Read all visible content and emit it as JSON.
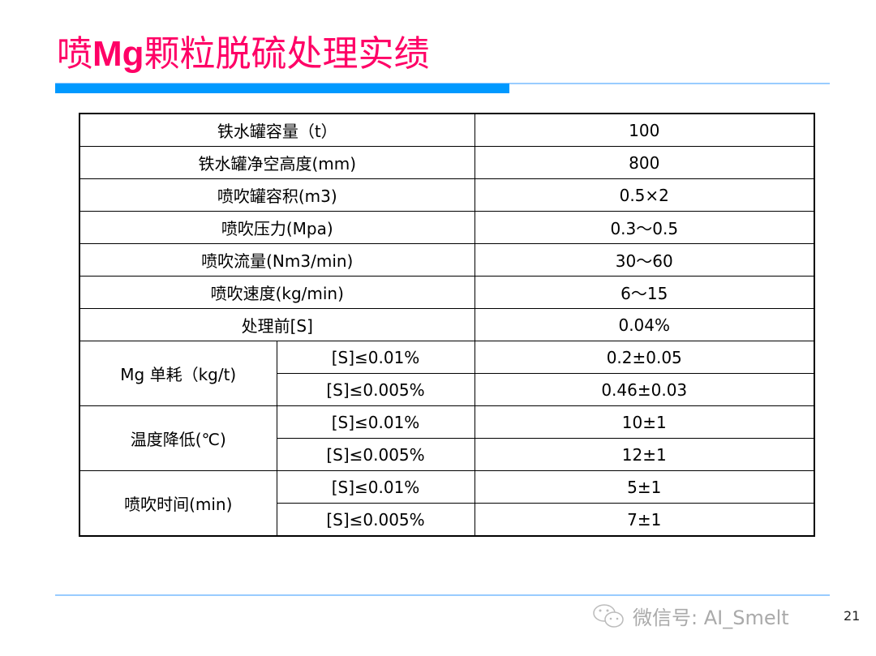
{
  "title": {
    "pre": "喷",
    "bold": "Mg",
    "post": "颗粒脱硫处理实绩"
  },
  "rows": [
    {
      "label": "铁水罐容量（t）",
      "value": "100"
    },
    {
      "label": "铁水罐净空高度(mm)",
      "value": "800"
    },
    {
      "label": "喷吹罐容积(m3)",
      "value": "0.5×2"
    },
    {
      "label": "喷吹压力(Mpa)",
      "value": "0.3～0.5"
    },
    {
      "label": "喷吹流量(Nm3/min)",
      "value": "30～60"
    },
    {
      "label": "喷吹速度(kg/min)",
      "value": "6～15"
    },
    {
      "label": "处理前[S]",
      "value": "0.04%"
    }
  ],
  "groups": [
    {
      "label": "Mg 单耗（kg/t)",
      "sub": [
        {
          "cond": "[S]≤0.01%",
          "value": "0.2±0.05"
        },
        {
          "cond": "[S]≤0.005%",
          "value": "0.46±0.03"
        }
      ]
    },
    {
      "label": "温度降低(℃)",
      "sub": [
        {
          "cond": "[S]≤0.01%",
          "value": "10±1"
        },
        {
          "cond": "[S]≤0.005%",
          "value": "12±1"
        }
      ]
    },
    {
      "label": "喷吹时间(min)",
      "sub": [
        {
          "cond": "[S]≤0.01%",
          "value": "5±1"
        },
        {
          "cond": "[S]≤0.005%",
          "value": "7±1"
        }
      ]
    }
  ],
  "footer": {
    "watermark": "微信号: AI_Smelt",
    "page": "21"
  },
  "colors": {
    "title": "#ff0066",
    "accent": "#0099ff",
    "line": "#99ccff"
  }
}
